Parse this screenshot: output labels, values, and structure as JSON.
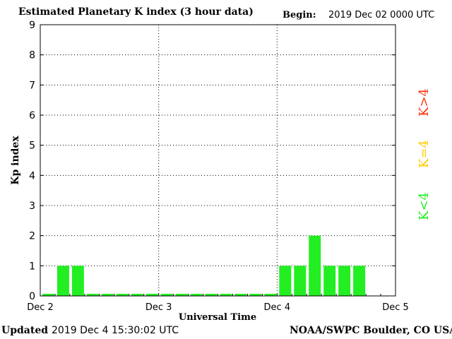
{
  "header": {
    "title": "Estimated Planetary K index (3 hour data)",
    "begin_label": "Begin:",
    "begin_value": "2019 Dec 02 0000 UTC"
  },
  "footer": {
    "updated_label": "Updated",
    "updated_value": "2019 Dec  4 15:30:02 UTC",
    "credit": "NOAA/SWPC Boulder, CO USA"
  },
  "legend": [
    {
      "label": "K<4",
      "color": "#22ee22"
    },
    {
      "label": "K=4",
      "color": "#ffcc00"
    },
    {
      "label": "K>4",
      "color": "#ff3311"
    }
  ],
  "chart_data": {
    "type": "bar",
    "title": "Estimated Planetary K index (3 hour data)",
    "xlabel": "Universal Time",
    "ylabel": "Kp index",
    "ylim": [
      0,
      9
    ],
    "yticks": [
      "0",
      "1",
      "2",
      "3",
      "4",
      "5",
      "6",
      "7",
      "8",
      "9"
    ],
    "xticks": [
      "Dec 2",
      "Dec 3",
      "Dec 4",
      "Dec 5"
    ],
    "grid": true,
    "bar_color": "#22ee22",
    "values": [
      0,
      1,
      1,
      0,
      0,
      0,
      0,
      0,
      0,
      0,
      0,
      0,
      0,
      0,
      0,
      0,
      1,
      1,
      2,
      1,
      1,
      1
    ]
  }
}
